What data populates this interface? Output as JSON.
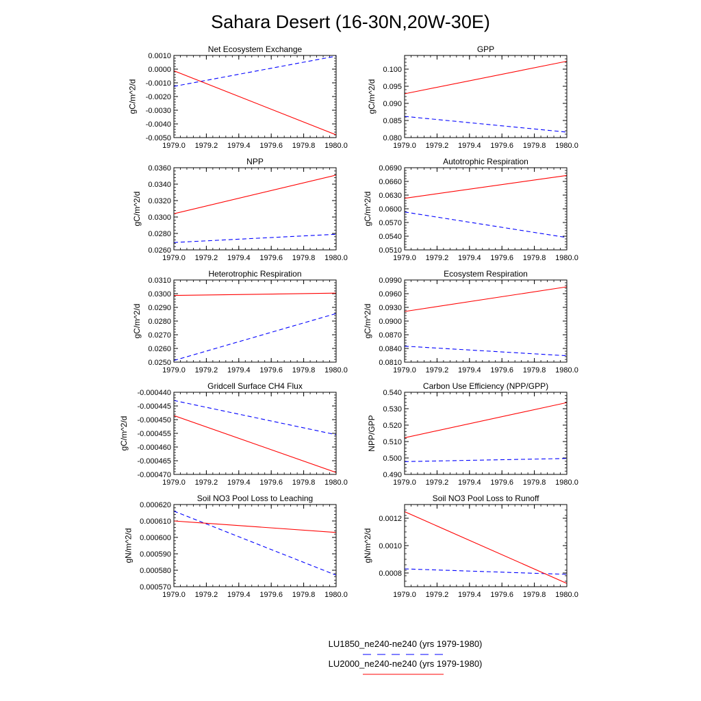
{
  "figure": {
    "title": "Sahara Desert (16-30N,20W-30E)"
  },
  "legend": [
    {
      "label": "LU1850_ne240-ne240 (yrs 1979-1980)",
      "color": "#0000ff",
      "dash": "dashed"
    },
    {
      "label": "LU2000_ne240-ne240 (yrs 1979-1980)",
      "color": "#ff0000",
      "dash": "solid"
    }
  ],
  "chart_data": [
    {
      "type": "line",
      "title": "Net Ecosystem Exchange",
      "ylabel": "gC/m^2/d",
      "x": [
        1979.0,
        1980.0
      ],
      "xlim": [
        1979.0,
        1980.0
      ],
      "xticks": [
        "1979.0",
        "1979.2",
        "1979.4",
        "1979.6",
        "1979.8",
        "1980.0"
      ],
      "ylim": [
        -0.005,
        0.001
      ],
      "yticks": [
        "0.0010",
        "0.0000",
        "-0.0010",
        "-0.0020",
        "-0.0030",
        "-0.0040",
        "-0.0050"
      ],
      "series": [
        {
          "values": [
            -0.00126,
            0.00095
          ],
          "color": "#0000ff",
          "dash": "dashed"
        },
        {
          "values": [
            -0.00012,
            -0.0048
          ],
          "color": "#ff0000",
          "dash": "solid"
        }
      ]
    },
    {
      "type": "line",
      "title": "GPP",
      "ylabel": "gC/m^2/d",
      "x": [
        1979.0,
        1980.0
      ],
      "xlim": [
        1979.0,
        1980.0
      ],
      "xticks": [
        "1979.0",
        "1979.2",
        "1979.4",
        "1979.6",
        "1979.8",
        "1980.0"
      ],
      "ylim": [
        0.08,
        0.104
      ],
      "yticks": [
        "0.100",
        "0.095",
        "0.090",
        "0.085",
        "0.080"
      ],
      "series": [
        {
          "values": [
            0.0862,
            0.0816
          ],
          "color": "#0000ff",
          "dash": "dashed"
        },
        {
          "values": [
            0.0928,
            0.1023
          ],
          "color": "#ff0000",
          "dash": "solid"
        }
      ]
    },
    {
      "type": "line",
      "title": "NPP",
      "ylabel": "gC/m^2/d",
      "x": [
        1979.0,
        1980.0
      ],
      "xlim": [
        1979.0,
        1980.0
      ],
      "xticks": [
        "1979.0",
        "1979.2",
        "1979.4",
        "1979.6",
        "1979.8",
        "1980.0"
      ],
      "ylim": [
        0.026,
        0.036
      ],
      "yticks": [
        "0.0360",
        "0.0340",
        "0.0320",
        "0.0300",
        "0.0280",
        "0.0260"
      ],
      "series": [
        {
          "values": [
            0.0269,
            0.0279
          ],
          "color": "#0000ff",
          "dash": "dashed"
        },
        {
          "values": [
            0.0304,
            0.0351
          ],
          "color": "#ff0000",
          "dash": "solid"
        }
      ]
    },
    {
      "type": "line",
      "title": "Autotrophic Respiration",
      "ylabel": "gC/m^2/d",
      "x": [
        1979.0,
        1980.0
      ],
      "xlim": [
        1979.0,
        1980.0
      ],
      "xticks": [
        "1979.0",
        "1979.2",
        "1979.4",
        "1979.6",
        "1979.8",
        "1980.0"
      ],
      "ylim": [
        0.051,
        0.069
      ],
      "yticks": [
        "0.0690",
        "0.0660",
        "0.0630",
        "0.0600",
        "0.0570",
        "0.0540",
        "0.0510"
      ],
      "series": [
        {
          "values": [
            0.0593,
            0.0537
          ],
          "color": "#0000ff",
          "dash": "dashed"
        },
        {
          "values": [
            0.0623,
            0.0673
          ],
          "color": "#ff0000",
          "dash": "solid"
        }
      ]
    },
    {
      "type": "line",
      "title": "Heterotrophic Respiration",
      "ylabel": "gC/m^2/d",
      "x": [
        1979.0,
        1980.0
      ],
      "xlim": [
        1979.0,
        1980.0
      ],
      "xticks": [
        "1979.0",
        "1979.2",
        "1979.4",
        "1979.6",
        "1979.8",
        "1980.0"
      ],
      "ylim": [
        0.025,
        0.031
      ],
      "yticks": [
        "0.0310",
        "0.0300",
        "0.0290",
        "0.0280",
        "0.0270",
        "0.0260",
        "0.0250"
      ],
      "series": [
        {
          "values": [
            0.02512,
            0.02855
          ],
          "color": "#0000ff",
          "dash": "dashed"
        },
        {
          "values": [
            0.02987,
            0.03004
          ],
          "color": "#ff0000",
          "dash": "solid"
        }
      ]
    },
    {
      "type": "line",
      "title": "Ecosystem Respiration",
      "ylabel": "gC/m^2/d",
      "x": [
        1979.0,
        1980.0
      ],
      "xlim": [
        1979.0,
        1980.0
      ],
      "xticks": [
        "1979.0",
        "1979.2",
        "1979.4",
        "1979.6",
        "1979.8",
        "1980.0"
      ],
      "ylim": [
        0.081,
        0.099
      ],
      "yticks": [
        "0.0990",
        "0.0960",
        "0.0930",
        "0.0900",
        "0.0870",
        "0.0840",
        "0.0810"
      ],
      "series": [
        {
          "values": [
            0.0845,
            0.0824
          ],
          "color": "#0000ff",
          "dash": "dashed"
        },
        {
          "values": [
            0.0921,
            0.0975
          ],
          "color": "#ff0000",
          "dash": "solid"
        }
      ]
    },
    {
      "type": "line",
      "title": "Gridcell Surface CH4 Flux",
      "ylabel": "gC/m^2/d",
      "x": [
        1979.0,
        1980.0
      ],
      "xlim": [
        1979.0,
        1980.0
      ],
      "xticks": [
        "1979.0",
        "1979.2",
        "1979.4",
        "1979.6",
        "1979.8",
        "1980.0"
      ],
      "ylim": [
        -0.00047,
        -0.00044
      ],
      "yticks": [
        "-0.000440",
        "-0.000445",
        "-0.000450",
        "-0.000455",
        "-0.000460",
        "-0.000465",
        "-0.000470"
      ],
      "series": [
        {
          "values": [
            -0.000443,
            -0.0004555
          ],
          "color": "#0000ff",
          "dash": "dashed"
        },
        {
          "values": [
            -0.0004485,
            -0.0004693
          ],
          "color": "#ff0000",
          "dash": "solid"
        }
      ]
    },
    {
      "type": "line",
      "title": "Carbon Use Efficiency (NPP/GPP)",
      "ylabel": "NPP/GPP",
      "x": [
        1979.0,
        1980.0
      ],
      "xlim": [
        1979.0,
        1980.0
      ],
      "xticks": [
        "1979.0",
        "1979.2",
        "1979.4",
        "1979.6",
        "1979.8",
        "1980.0"
      ],
      "ylim": [
        0.49,
        0.54
      ],
      "yticks": [
        "0.540",
        "0.530",
        "0.520",
        "0.510",
        "0.500",
        "0.490"
      ],
      "series": [
        {
          "values": [
            0.4978,
            0.4997
          ],
          "color": "#0000ff",
          "dash": "dashed"
        },
        {
          "values": [
            0.5123,
            0.5337
          ],
          "color": "#ff0000",
          "dash": "solid"
        }
      ]
    },
    {
      "type": "line",
      "title": "Soil NO3 Pool Loss to Leaching",
      "ylabel": "gN/m^2/d",
      "x": [
        1979.0,
        1980.0
      ],
      "xlim": [
        1979.0,
        1980.0
      ],
      "xticks": [
        "1979.0",
        "1979.2",
        "1979.4",
        "1979.6",
        "1979.8",
        "1980.0"
      ],
      "ylim": [
        0.00057,
        0.00062
      ],
      "yticks": [
        "0.000620",
        "0.000610",
        "0.000600",
        "0.000590",
        "0.000580",
        "0.000570"
      ],
      "series": [
        {
          "values": [
            0.000616,
            0.000577
          ],
          "color": "#0000ff",
          "dash": "dashed"
        },
        {
          "values": [
            0.00061,
            0.000603
          ],
          "color": "#ff0000",
          "dash": "solid"
        }
      ]
    },
    {
      "type": "line",
      "title": "Soil NO3 Pool Loss to Runoff",
      "ylabel": "gN/m^2/d",
      "x": [
        1979.0,
        1980.0
      ],
      "xlim": [
        1979.0,
        1980.0
      ],
      "xticks": [
        "1979.0",
        "1979.2",
        "1979.4",
        "1979.6",
        "1979.8",
        "1980.0"
      ],
      "ylim": [
        0.0007,
        0.0013
      ],
      "yticks": [
        "0.0012",
        "0.0010",
        "0.0008"
      ],
      "series": [
        {
          "values": [
            0.00083,
            0.00079
          ],
          "color": "#0000ff",
          "dash": "dashed"
        },
        {
          "values": [
            0.001248,
            0.000724
          ],
          "color": "#ff0000",
          "dash": "solid"
        }
      ]
    }
  ]
}
